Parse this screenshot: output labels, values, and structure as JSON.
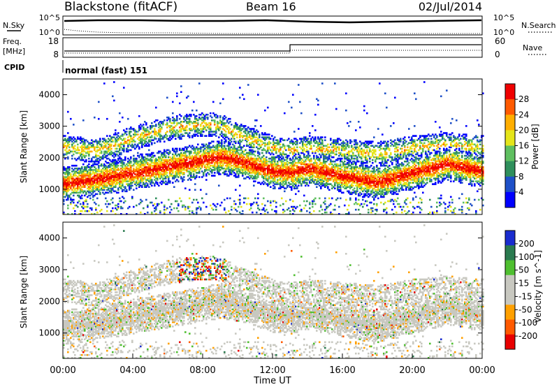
{
  "header": {
    "station": "Blackstone (fitACF)",
    "beam": "Beam 16",
    "date": "02/Jul/2014"
  },
  "top_panels": {
    "nsky_label": "N.Sky",
    "nsky_ticks": [
      "10^5",
      "10^0"
    ],
    "nsearch_label": "N.Search",
    "nsearch_ticks": [
      "10^5",
      "10^0"
    ],
    "freq_label": "Freq.",
    "freq_unit": "[MHz]",
    "freq_ticks": [
      "18",
      "8"
    ],
    "nave_label": "Nave",
    "nave_ticks": [
      "60",
      "0"
    ],
    "cpid_label": "CPID",
    "cpid_value": "normal (fast) 151"
  },
  "colors": {
    "power": [
      "#0000ff",
      "#1e50c8",
      "#2f8f5c",
      "#5fbf60",
      "#e5e51a",
      "#ffae00",
      "#ff5a00",
      "#f00000"
    ],
    "velocity": [
      "#e80000",
      "#ff5a00",
      "#ffa000",
      "#c8c8c0",
      "#c8c8c0",
      "#4fbf30",
      "#2a7a4f",
      "#1a2ccf"
    ]
  },
  "chart_data": [
    {
      "type": "heatmap",
      "name": "power",
      "ylabel": "Slant Range [km]",
      "yticks": [
        "4000",
        "3000",
        "2000",
        "1000"
      ],
      "ylim": [
        200,
        4500
      ],
      "colorbar_label": "Power [dB]",
      "colorbar_ticks": [
        "28",
        "24",
        "20",
        "16",
        "12",
        "8",
        "4"
      ],
      "colorbar_range": [
        0,
        32
      ],
      "x_hours": [
        0,
        2,
        4,
        6,
        8,
        9,
        10,
        12,
        13,
        14,
        16,
        18,
        20,
        22,
        24
      ],
      "scatter_center_km": [
        1150,
        1300,
        1500,
        1700,
        1900,
        2000,
        1900,
        1550,
        1500,
        1650,
        1400,
        1200,
        1500,
        1800,
        1550
      ],
      "upper_band_km": [
        2300,
        2200,
        2600,
        2900,
        3050,
        3000,
        2700,
        2300,
        2200,
        2300,
        2200,
        2100,
        2300,
        2400,
        2300
      ]
    },
    {
      "type": "heatmap",
      "name": "velocity",
      "ylabel": "Slant Range [km]",
      "yticks": [
        "4000",
        "3000",
        "2000",
        "1000"
      ],
      "ylim": [
        200,
        4500
      ],
      "colorbar_label": "Velocity [m s^-1]",
      "colorbar_ticks": [
        "200",
        "100",
        "50",
        "15",
        "-15",
        "-50",
        "-100",
        "-200"
      ],
      "colorbar_range": [
        -250,
        250
      ],
      "xlabel": "Time UT",
      "xticks": [
        "00:00",
        "04:00",
        "08:00",
        "12:00",
        "16:00",
        "20:00",
        "00:00"
      ],
      "xlim_hours": [
        0,
        24
      ]
    }
  ]
}
